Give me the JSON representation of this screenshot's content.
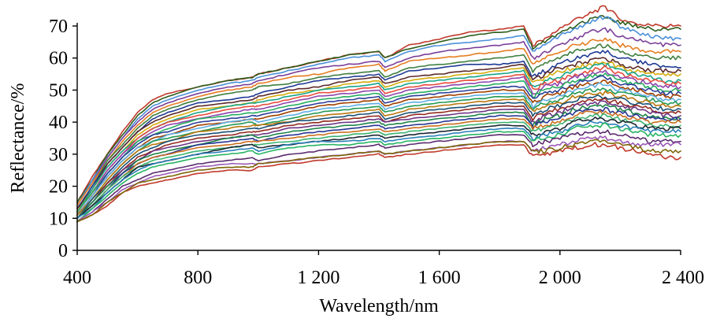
{
  "chart_data": {
    "type": "line",
    "title": "",
    "xlabel": "Wavelength/nm",
    "ylabel": "Reflectance/%",
    "xlim": [
      400,
      2400
    ],
    "ylim": [
      0,
      70
    ],
    "grid": false,
    "legend": "none",
    "x_ticks": [
      400,
      800,
      1200,
      1600,
      2000,
      2400
    ],
    "x_tick_labels": [
      "400",
      "800",
      "1 200",
      "1 600",
      "2 000",
      "2 400"
    ],
    "y_ticks": [
      0,
      10,
      20,
      30,
      40,
      50,
      60,
      70
    ],
    "y_tick_labels": [
      "0",
      "10",
      "20",
      "30",
      "40",
      "50",
      "60",
      "70"
    ],
    "x": [
      400,
      450,
      500,
      550,
      600,
      650,
      700,
      800,
      900,
      980,
      1000,
      1100,
      1200,
      1300,
      1400,
      1420,
      1500,
      1600,
      1700,
      1800,
      1880,
      1910,
      1950,
      2000,
      2050,
      2100,
      2150,
      2200,
      2250,
      2300,
      2350,
      2400
    ],
    "series": [
      {
        "color": "#c0392b",
        "values": [
          15,
          23,
          30,
          37,
          43,
          47,
          49,
          51,
          53,
          54,
          55,
          57,
          59,
          61,
          62,
          60,
          64,
          66,
          68,
          69,
          70,
          64,
          66,
          69,
          72,
          74,
          76,
          72,
          71,
          70,
          70,
          70
        ]
      },
      {
        "color": "#2e5e1e",
        "values": [
          15,
          22,
          30,
          36,
          42,
          46,
          48,
          51,
          53,
          54,
          55,
          57,
          59,
          61,
          62,
          60,
          63,
          65,
          67,
          68,
          69,
          63,
          65,
          68,
          70,
          72,
          73,
          71,
          70,
          69,
          69,
          69
        ]
      },
      {
        "color": "#4a90d9",
        "values": [
          14,
          22,
          29,
          35,
          41,
          45,
          47,
          50,
          52,
          53,
          54,
          56,
          58,
          60,
          61,
          59,
          62,
          64,
          65,
          66,
          67,
          62,
          64,
          67,
          69,
          71,
          73,
          70,
          68,
          67,
          66,
          66
        ]
      },
      {
        "color": "#7b3f99",
        "values": [
          14,
          21,
          29,
          35,
          40,
          44,
          46,
          49,
          51,
          52,
          53,
          55,
          57,
          58,
          59,
          57,
          60,
          62,
          63,
          64,
          65,
          60,
          62,
          64,
          66,
          68,
          69,
          67,
          66,
          65,
          64,
          64
        ]
      },
      {
        "color": "#e67e22",
        "values": [
          14,
          21,
          28,
          34,
          39,
          43,
          45,
          48,
          50,
          51,
          52,
          54,
          55,
          57,
          58,
          56,
          59,
          60,
          61,
          62,
          63,
          58,
          60,
          62,
          64,
          65,
          66,
          64,
          63,
          62,
          62,
          62
        ]
      },
      {
        "color": "#3f7f3f",
        "values": [
          13,
          20,
          28,
          33,
          38,
          42,
          44,
          47,
          49,
          50,
          51,
          52,
          54,
          55,
          56,
          54,
          57,
          58,
          59,
          60,
          61,
          56,
          58,
          60,
          62,
          63,
          64,
          62,
          61,
          60,
          60,
          60
        ]
      },
      {
        "color": "#1f3a93",
        "values": [
          13,
          20,
          27,
          32,
          37,
          41,
          43,
          46,
          47,
          48,
          49,
          51,
          53,
          54,
          55,
          53,
          56,
          57,
          58,
          58,
          59,
          54,
          56,
          58,
          60,
          61,
          62,
          60,
          59,
          58,
          57,
          57
        ]
      },
      {
        "color": "#5c2a2a",
        "values": [
          13,
          19,
          27,
          32,
          37,
          40,
          42,
          45,
          46,
          47,
          48,
          50,
          51,
          53,
          54,
          52,
          54,
          55,
          56,
          57,
          58,
          53,
          55,
          57,
          58,
          59,
          60,
          58,
          57,
          56,
          56,
          56
        ]
      },
      {
        "color": "#d4ac0d",
        "values": [
          12,
          19,
          26,
          31,
          36,
          39,
          41,
          44,
          45,
          46,
          47,
          49,
          50,
          52,
          53,
          51,
          53,
          54,
          55,
          56,
          57,
          52,
          54,
          56,
          57,
          58,
          59,
          57,
          56,
          55,
          55,
          55
        ]
      },
      {
        "color": "#17a589",
        "values": [
          12,
          19,
          26,
          31,
          35,
          38,
          40,
          43,
          45,
          46,
          46,
          48,
          50,
          51,
          52,
          50,
          52,
          53,
          54,
          55,
          56,
          51,
          53,
          54,
          56,
          57,
          58,
          56,
          55,
          54,
          53,
          53
        ]
      },
      {
        "color": "#e74c3c",
        "values": [
          12,
          18,
          25,
          30,
          35,
          38,
          40,
          42,
          44,
          45,
          45,
          47,
          49,
          50,
          51,
          49,
          51,
          52,
          53,
          54,
          55,
          50,
          52,
          53,
          55,
          56,
          57,
          55,
          54,
          53,
          52,
          52
        ]
      },
      {
        "color": "#8e44ad",
        "values": [
          12,
          18,
          25,
          30,
          34,
          37,
          39,
          41,
          43,
          44,
          44,
          46,
          48,
          49,
          50,
          48,
          50,
          51,
          52,
          53,
          54,
          49,
          51,
          52,
          54,
          55,
          56,
          54,
          53,
          52,
          51,
          51
        ]
      },
      {
        "color": "#27ae60",
        "values": [
          12,
          18,
          24,
          29,
          34,
          36,
          38,
          41,
          42,
          43,
          43,
          45,
          47,
          48,
          49,
          47,
          49,
          50,
          51,
          52,
          53,
          48,
          50,
          51,
          53,
          54,
          55,
          53,
          52,
          51,
          50,
          50
        ]
      },
      {
        "color": "#2c3e99",
        "values": [
          11,
          17,
          24,
          29,
          33,
          36,
          37,
          40,
          41,
          42,
          42,
          44,
          46,
          47,
          48,
          46,
          48,
          49,
          50,
          51,
          51,
          47,
          49,
          50,
          52,
          53,
          54,
          52,
          51,
          50,
          49,
          49
        ]
      },
      {
        "color": "#a04000",
        "values": [
          11,
          17,
          23,
          28,
          32,
          35,
          36,
          39,
          40,
          41,
          41,
          43,
          45,
          46,
          47,
          45,
          47,
          48,
          49,
          50,
          50,
          46,
          48,
          49,
          51,
          52,
          53,
          51,
          50,
          49,
          48,
          48
        ]
      },
      {
        "color": "#5dade2",
        "values": [
          11,
          17,
          23,
          28,
          32,
          34,
          36,
          38,
          40,
          41,
          40,
          42,
          44,
          45,
          46,
          44,
          46,
          47,
          48,
          49,
          49,
          45,
          47,
          48,
          50,
          51,
          52,
          50,
          49,
          48,
          47,
          47
        ]
      },
      {
        "color": "#229954",
        "values": [
          11,
          16,
          22,
          27,
          31,
          34,
          35,
          37,
          39,
          40,
          39,
          41,
          43,
          44,
          45,
          43,
          45,
          46,
          47,
          48,
          48,
          44,
          46,
          47,
          49,
          50,
          50,
          49,
          48,
          47,
          46,
          46
        ]
      },
      {
        "color": "#b9770e",
        "values": [
          11,
          16,
          22,
          27,
          31,
          33,
          34,
          37,
          38,
          39,
          39,
          40,
          42,
          43,
          44,
          42,
          44,
          45,
          46,
          47,
          47,
          43,
          45,
          46,
          48,
          49,
          49,
          48,
          47,
          46,
          45,
          45
        ]
      },
      {
        "color": "#1a5276",
        "values": [
          10,
          16,
          21,
          26,
          30,
          32,
          34,
          36,
          37,
          38,
          38,
          40,
          41,
          42,
          43,
          41,
          43,
          44,
          45,
          46,
          46,
          42,
          44,
          45,
          47,
          48,
          48,
          47,
          46,
          45,
          44,
          44
        ]
      },
      {
        "color": "#922b21",
        "values": [
          10,
          15,
          21,
          25,
          29,
          31,
          33,
          35,
          36,
          37,
          37,
          39,
          40,
          41,
          42,
          40,
          42,
          43,
          44,
          45,
          45,
          41,
          43,
          44,
          46,
          47,
          47,
          46,
          45,
          44,
          43,
          43
        ]
      },
      {
        "color": "#6c3483",
        "values": [
          10,
          15,
          20,
          25,
          28,
          31,
          32,
          34,
          35,
          36,
          36,
          38,
          39,
          40,
          41,
          40,
          41,
          42,
          43,
          44,
          44,
          40,
          42,
          43,
          45,
          46,
          46,
          45,
          44,
          43,
          42,
          42
        ]
      },
      {
        "color": "#1e8449",
        "values": [
          10,
          15,
          20,
          24,
          28,
          30,
          31,
          33,
          35,
          36,
          35,
          37,
          38,
          39,
          40,
          39,
          40,
          41,
          42,
          43,
          43,
          39,
          41,
          42,
          44,
          45,
          45,
          44,
          43,
          42,
          41,
          41
        ]
      },
      {
        "color": "#283593",
        "values": [
          10,
          14,
          19,
          24,
          27,
          29,
          30,
          33,
          34,
          35,
          34,
          36,
          37,
          38,
          39,
          38,
          39,
          40,
          41,
          42,
          42,
          39,
          40,
          41,
          43,
          44,
          44,
          43,
          42,
          41,
          41,
          41
        ]
      },
      {
        "color": "#ca6f1e",
        "values": [
          10,
          14,
          19,
          23,
          27,
          29,
          30,
          32,
          33,
          34,
          34,
          35,
          36,
          37,
          38,
          37,
          38,
          39,
          40,
          41,
          41,
          38,
          39,
          40,
          42,
          43,
          43,
          42,
          41,
          40,
          40,
          40
        ]
      },
      {
        "color": "#3cb371",
        "values": [
          10,
          14,
          19,
          23,
          26,
          28,
          29,
          31,
          32,
          33,
          33,
          34,
          35,
          36,
          37,
          36,
          37,
          38,
          39,
          40,
          40,
          37,
          38,
          39,
          41,
          42,
          42,
          41,
          40,
          39,
          39,
          39
        ]
      },
      {
        "color": "#1c2833",
        "values": [
          10,
          14,
          18,
          22,
          26,
          27,
          28,
          30,
          32,
          33,
          32,
          33,
          34,
          35,
          36,
          35,
          36,
          37,
          38,
          39,
          39,
          36,
          37,
          38,
          40,
          41,
          41,
          40,
          39,
          38,
          38,
          38
        ]
      },
      {
        "color": "#2980b9",
        "values": [
          10,
          13,
          18,
          22,
          25,
          27,
          28,
          30,
          31,
          32,
          31,
          33,
          34,
          34,
          35,
          34,
          35,
          36,
          37,
          38,
          38,
          35,
          36,
          37,
          39,
          40,
          40,
          39,
          38,
          37,
          37,
          37
        ]
      },
      {
        "color": "#28b463",
        "values": [
          9,
          13,
          17,
          21,
          24,
          26,
          27,
          29,
          30,
          31,
          30,
          32,
          33,
          33,
          34,
          33,
          34,
          35,
          36,
          37,
          37,
          34,
          35,
          36,
          38,
          39,
          39,
          38,
          37,
          36,
          36,
          36
        ]
      },
      {
        "color": "#5b2c6f",
        "values": [
          9,
          12,
          16,
          20,
          22,
          24,
          25,
          27,
          28,
          29,
          28,
          30,
          31,
          32,
          33,
          32,
          33,
          34,
          35,
          36,
          36,
          33,
          34,
          35,
          36,
          37,
          37,
          36,
          35,
          34,
          34,
          34
        ]
      },
      {
        "color": "#9b59b6",
        "values": [
          9,
          12,
          15,
          19,
          21,
          23,
          24,
          26,
          27,
          27,
          27,
          28,
          29,
          30,
          31,
          30,
          31,
          32,
          33,
          34,
          34,
          31,
          32,
          33,
          34,
          35,
          35,
          34,
          33,
          33,
          33,
          33
        ]
      },
      {
        "color": "#c0392b",
        "values": [
          9,
          11,
          14,
          18,
          20,
          21,
          22,
          24,
          25,
          25,
          26,
          27,
          28,
          29,
          30,
          29,
          30,
          31,
          32,
          33,
          33,
          29,
          30,
          31,
          32,
          33,
          33,
          32,
          31,
          30,
          29,
          29
        ]
      },
      {
        "color": "#7d6608",
        "values": [
          9,
          11,
          15,
          18,
          21,
          22,
          23,
          25,
          26,
          26,
          27,
          28,
          29,
          30,
          31,
          30,
          31,
          32,
          33,
          34,
          34,
          31,
          31,
          32,
          33,
          34,
          34,
          33,
          32,
          31,
          31,
          31
        ]
      }
    ]
  }
}
